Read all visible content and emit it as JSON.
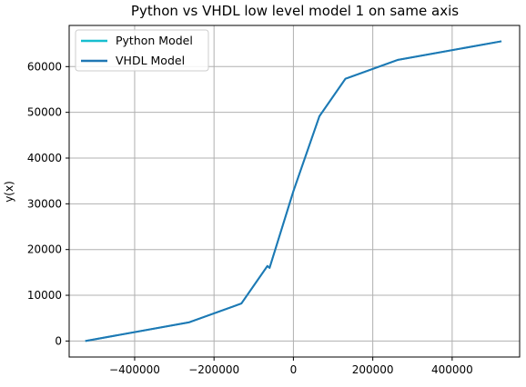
{
  "chart_data": {
    "type": "line",
    "title": "Python vs VHDL low level model 1 on same axis",
    "xlabel": "",
    "ylabel": "y(x)",
    "xlim": [
      -565000,
      570000
    ],
    "ylim": [
      -3500,
      69000
    ],
    "xticks": [
      -400000,
      -200000,
      0,
      200000,
      400000
    ],
    "xtick_labels": [
      "−400000",
      "−200000",
      "0",
      "200000",
      "400000"
    ],
    "yticks": [
      0,
      10000,
      20000,
      30000,
      40000,
      50000,
      60000
    ],
    "ytick_labels": [
      "0",
      "10000",
      "20000",
      "30000",
      "40000",
      "50000",
      "60000"
    ],
    "grid": true,
    "legend_position": "upper-left",
    "series": [
      {
        "name": "Python Model",
        "color": "#17becf",
        "x": [
          -524288,
          -262144,
          -131072,
          -65536,
          -60000,
          0,
          65536,
          131072,
          262144,
          524287
        ],
        "y": [
          0,
          4100,
          8200,
          16400,
          16000,
          32768,
          49150,
          57350,
          61450,
          65535
        ]
      },
      {
        "name": "VHDL Model",
        "color": "#1f77b4",
        "x": [
          -524288,
          -262144,
          -131072,
          -65536,
          -60000,
          0,
          65536,
          131072,
          262144,
          524287
        ],
        "y": [
          0,
          4100,
          8200,
          16400,
          16000,
          32768,
          49150,
          57350,
          61450,
          65535
        ]
      }
    ]
  }
}
